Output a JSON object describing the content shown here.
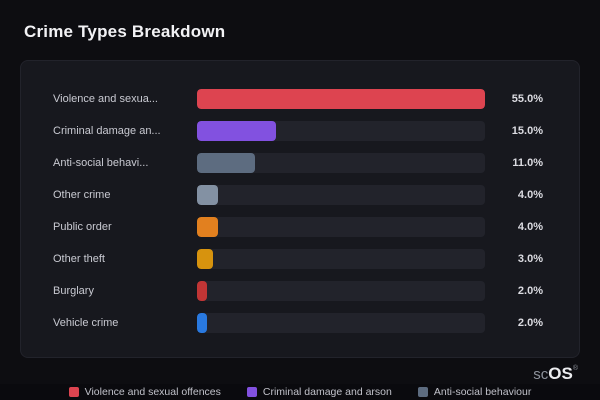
{
  "title": "Crime Types Breakdown",
  "chart_data": {
    "type": "bar",
    "orientation": "horizontal",
    "title": "Crime Types Breakdown",
    "xlabel": "",
    "ylabel": "",
    "xlim": [
      0,
      55
    ],
    "grid": false,
    "legend_position": "bottom",
    "categories": [
      "Violence and sexua...",
      "Criminal damage an...",
      "Anti-social behavi...",
      "Other crime",
      "Public order",
      "Other theft",
      "Burglary",
      "Vehicle crime"
    ],
    "values": [
      55.0,
      15.0,
      11.0,
      4.0,
      4.0,
      3.0,
      2.0,
      2.0
    ],
    "value_labels": [
      "55.0%",
      "15.0%",
      "11.0%",
      "4.0%",
      "4.0%",
      "3.0%",
      "2.0%",
      "2.0%"
    ],
    "bar_colors": [
      "#dd4450",
      "#8251e0",
      "#5d6c80",
      "#8391a3",
      "#e2801f",
      "#d7930e",
      "#c13535",
      "#2979e0"
    ],
    "legend": [
      {
        "label": "Violence and sexual offences",
        "color": "#dd4450"
      },
      {
        "label": "Criminal damage and arson",
        "color": "#8251e0"
      },
      {
        "label": "Anti-social behaviour",
        "color": "#5d6c80"
      }
    ]
  },
  "colors": {
    "background": "#0d0d11",
    "card_background": "#17181e",
    "bar_track": "#22232b",
    "title_text": "#f2f2f5"
  },
  "branding": {
    "prefix": "sc",
    "suffix": "OS",
    "registered": "®"
  }
}
